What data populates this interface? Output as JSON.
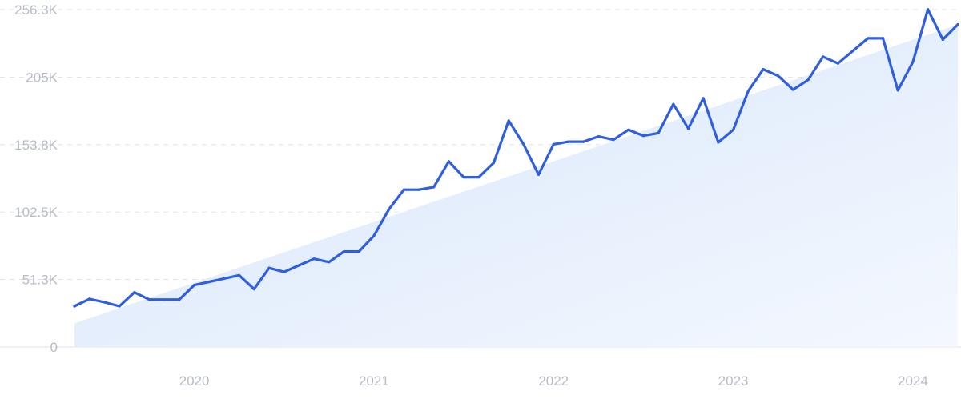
{
  "colors": {
    "line": "#2f5fe0",
    "trend_fill": "#dbe8fb",
    "grid": "#dfe3ea",
    "tick_text": "#b7bcc6"
  },
  "chart_data": {
    "type": "line",
    "title": "",
    "xlabel": "",
    "ylabel": "",
    "ylim": [
      0,
      256300
    ],
    "grid": true,
    "y_ticks": [
      {
        "value": 0,
        "label": "0"
      },
      {
        "value": 51300,
        "label": "51.3K"
      },
      {
        "value": 102500,
        "label": "102.5K"
      },
      {
        "value": 153800,
        "label": "153.8K"
      },
      {
        "value": 205000,
        "label": "205K"
      },
      {
        "value": 256300,
        "label": "256.3K"
      }
    ],
    "x_ticks": [
      {
        "date": "2020-01",
        "label": "2020"
      },
      {
        "date": "2021-01",
        "label": "2021"
      },
      {
        "date": "2022-01",
        "label": "2022"
      },
      {
        "date": "2023-01",
        "label": "2023"
      },
      {
        "date": "2024-01",
        "label": "2024"
      }
    ],
    "x_range": [
      "2019-05",
      "2024-04"
    ],
    "series": [
      {
        "x": [
          "2019-05",
          "2019-06",
          "2019-07",
          "2019-08",
          "2019-09",
          "2019-10",
          "2019-11",
          "2019-12",
          "2020-01",
          "2020-02",
          "2020-03",
          "2020-04",
          "2020-05",
          "2020-06",
          "2020-07",
          "2020-08",
          "2020-09",
          "2020-10",
          "2020-11",
          "2020-12",
          "2021-01",
          "2021-02",
          "2021-03",
          "2021-04",
          "2021-05",
          "2021-06",
          "2021-07",
          "2021-08",
          "2021-09",
          "2021-10",
          "2021-11",
          "2021-12",
          "2022-01",
          "2022-02",
          "2022-03",
          "2022-04",
          "2022-05",
          "2022-06",
          "2022-07",
          "2022-08",
          "2022-09",
          "2022-10",
          "2022-11",
          "2022-12",
          "2023-01",
          "2023-02",
          "2023-03",
          "2023-04",
          "2023-05",
          "2023-06",
          "2023-07",
          "2023-08",
          "2023-09",
          "2023-10",
          "2023-11",
          "2023-12",
          "2024-01",
          "2024-02",
          "2024-03",
          "2024-04"
        ],
        "values": [
          31000,
          36500,
          34000,
          31000,
          41500,
          36000,
          36000,
          36000,
          47000,
          49500,
          52000,
          54500,
          44000,
          60000,
          57000,
          62000,
          67000,
          64500,
          72500,
          72500,
          84500,
          104500,
          119500,
          119500,
          121500,
          141000,
          129000,
          129000,
          140000,
          172000,
          154000,
          131000,
          154000,
          156000,
          156000,
          160000,
          157500,
          165000,
          160500,
          162500,
          184500,
          166000,
          189000,
          155500,
          165000,
          194500,
          211000,
          206000,
          195500,
          203000,
          220500,
          215500,
          225000,
          234500,
          234500,
          195000,
          216500,
          256500,
          233500,
          245000
        ]
      }
    ],
    "trend": {
      "start_value": 18000,
      "end_value": 245000
    }
  }
}
